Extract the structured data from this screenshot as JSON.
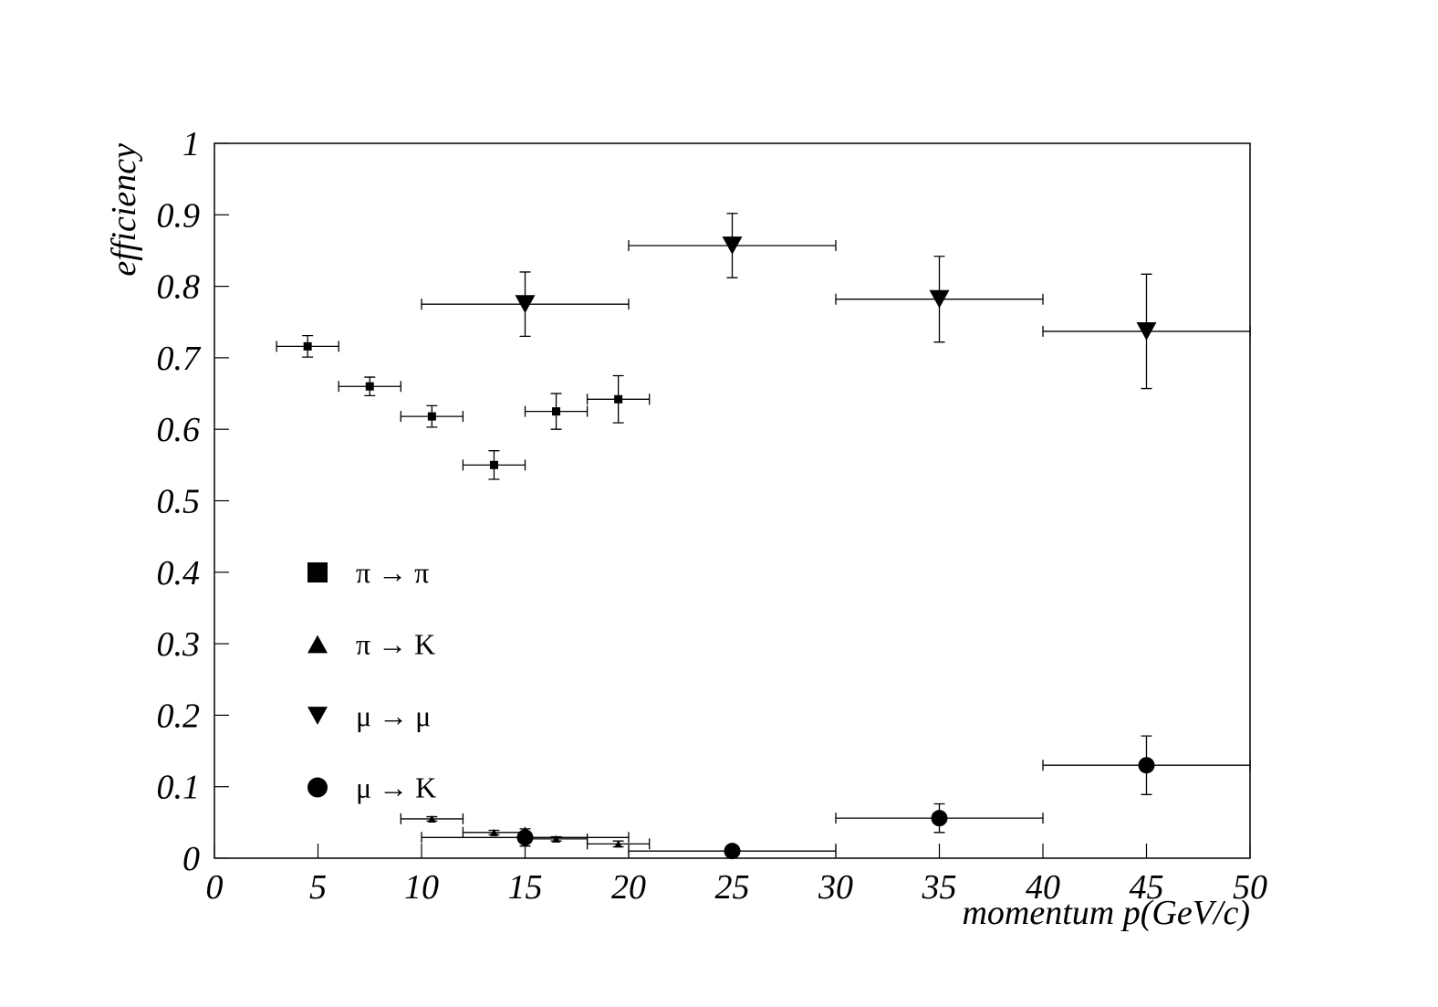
{
  "chart_data": {
    "type": "scatter",
    "x_label": "momentum p(GeV/c)",
    "y_label": "efficiency",
    "xlim": [
      0,
      50
    ],
    "xticks": [
      0,
      5,
      10,
      15,
      20,
      25,
      30,
      35,
      40,
      45,
      50
    ],
    "ylim": [
      0,
      1
    ],
    "yticks": [
      0,
      0.1,
      0.2,
      0.3,
      0.4,
      0.5,
      0.6,
      0.7,
      0.8,
      0.9,
      1
    ],
    "grid": false,
    "legend": "lower-left",
    "series": [
      {
        "name": "π → π",
        "color": "#000000",
        "marker": "square",
        "x": [
          4.5,
          7.5,
          10.5,
          13.5,
          16.5,
          19.5
        ],
        "xerr": [
          1.5,
          1.5,
          1.5,
          1.5,
          1.5,
          1.5
        ],
        "values": [
          0.716,
          0.66,
          0.618,
          0.55,
          0.625,
          0.642
        ],
        "yerr": [
          0.015,
          0.013,
          0.015,
          0.02,
          0.025,
          0.033
        ]
      },
      {
        "name": "π → K",
        "color": "#000000",
        "marker": "triangle-up",
        "x": [
          10.5,
          13.5,
          16.5,
          19.5
        ],
        "xerr": [
          1.5,
          1.5,
          1.5,
          1.5
        ],
        "values": [
          0.055,
          0.036,
          0.027,
          0.02
        ],
        "yerr": [
          0.003,
          0.003,
          0.003,
          0.004
        ]
      },
      {
        "name": "μ → μ",
        "color": "#000000",
        "marker": "triangle-down",
        "x": [
          15,
          25,
          35,
          45
        ],
        "xerr": [
          5,
          5,
          5,
          5
        ],
        "values": [
          0.775,
          0.857,
          0.782,
          0.737
        ],
        "yerr": [
          0.045,
          0.045,
          0.06,
          0.08
        ]
      },
      {
        "name": "μ → K",
        "color": "#000000",
        "marker": "circle",
        "x": [
          15,
          25,
          35,
          45
        ],
        "xerr": [
          5,
          5,
          5,
          5
        ],
        "values": [
          0.029,
          0.01,
          0.056,
          0.13
        ],
        "yerr": [
          0.012,
          0,
          0.02,
          0.041
        ]
      }
    ]
  }
}
